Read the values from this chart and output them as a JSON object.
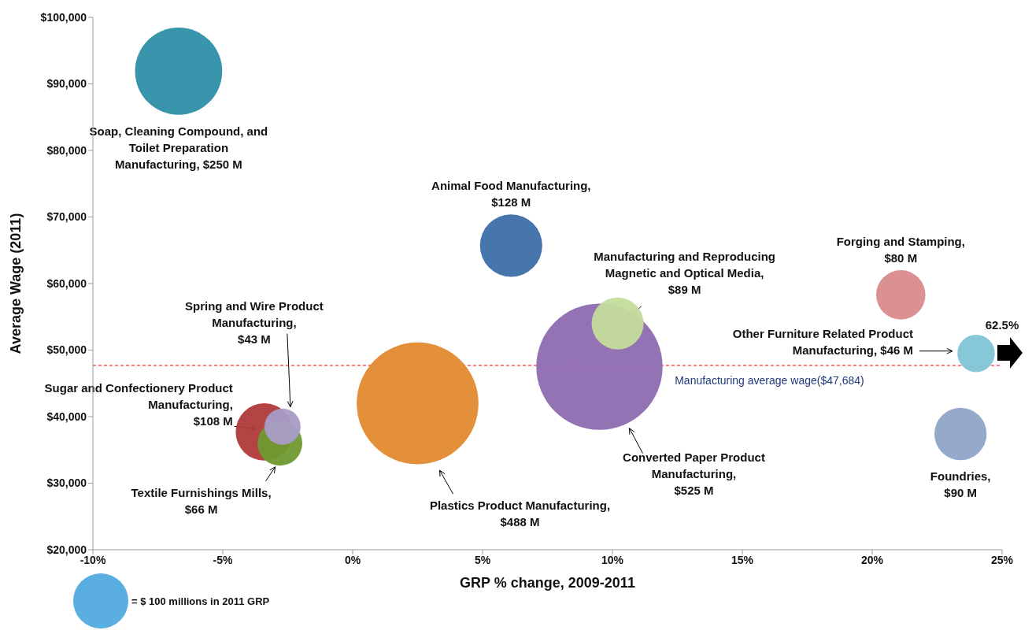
{
  "chart_data": {
    "type": "bubble",
    "xlabel": "GRP % change, 2009-2011",
    "ylabel": "Average Wage (2011)",
    "xlim": [
      -10,
      25
    ],
    "xticks": [
      {
        "value": -10,
        "label": "-10%"
      },
      {
        "value": -5,
        "label": "-5%"
      },
      {
        "value": 0,
        "label": "0%"
      },
      {
        "value": 5,
        "label": "5%"
      },
      {
        "value": 10,
        "label": "10%"
      },
      {
        "value": 15,
        "label": "15%"
      },
      {
        "value": 20,
        "label": "20%"
      },
      {
        "value": 25,
        "label": "25%"
      }
    ],
    "ylim": [
      20000,
      100000
    ],
    "yticks": [
      {
        "value": 20000,
        "label": "$20,000"
      },
      {
        "value": 30000,
        "label": "$30,000"
      },
      {
        "value": 40000,
        "label": "$40,000"
      },
      {
        "value": 50000,
        "label": "$50,000"
      },
      {
        "value": 60000,
        "label": "$60,000"
      },
      {
        "value": 70000,
        "label": "$70,000"
      },
      {
        "value": 80000,
        "label": "$80,000"
      },
      {
        "value": 90000,
        "label": "$90,000"
      },
      {
        "value": 100000,
        "label": "$100,000"
      }
    ],
    "size_legend": [
      {
        "value": 100,
        "label": "= $ 100 millions in 2011 GRP"
      }
    ],
    "series": [
      {
        "name": "Soap, Cleaning Compound, and Toilet Preparation Manufacturing, $250 M",
        "color": "#2e8fa6",
        "x": [
          -6.7
        ],
        "values": [
          91900
        ],
        "sizes": [
          250
        ]
      },
      {
        "name": "Animal Food Manufacturing, $128 M",
        "color": "#3d6fa8",
        "x": [
          6.1
        ],
        "values": [
          65700
        ],
        "sizes": [
          128
        ]
      },
      {
        "name": "Manufacturing and Reproducing Magnetic and Optical Media, $89 M",
        "color": "#c4dc9c",
        "x": [
          10.2
        ],
        "values": [
          54000
        ],
        "sizes": [
          89
        ]
      },
      {
        "name": "Forging and Stamping, $80 M",
        "color": "#d98b8b",
        "x": [
          21.1
        ],
        "values": [
          58300
        ],
        "sizes": [
          80
        ]
      },
      {
        "name": "Other Furniture Related Product Manufacturing, $46 M",
        "color": "#7fc4d6",
        "x": [
          24
        ],
        "values": [
          49500
        ],
        "sizes": [
          46
        ]
      },
      {
        "name": "Foundries, $90 M",
        "color": "#8fa4c8",
        "x": [
          23.4
        ],
        "values": [
          37400
        ],
        "sizes": [
          90
        ]
      },
      {
        "name": "Converted Paper Product Manufacturing, $525 M",
        "color": "#8e6bb0",
        "x": [
          9.5
        ],
        "values": [
          47500
        ],
        "sizes": [
          525
        ]
      },
      {
        "name": "Plastics Product Manufacturing, $488 M",
        "color": "#e38a30",
        "x": [
          2.5
        ],
        "values": [
          42000
        ],
        "sizes": [
          488
        ]
      },
      {
        "name": "Sugar and Confectionery Product Manufacturing, $108 M",
        "color": "#b03a3a",
        "x": [
          -3.4
        ],
        "values": [
          37700
        ],
        "sizes": [
          108
        ]
      },
      {
        "name": "Textile Furnishings Mills, $66 M",
        "color": "#6f9a30",
        "x": [
          -2.8
        ],
        "values": [
          36000
        ],
        "sizes": [
          66
        ]
      },
      {
        "name": "Spring and Wire Product Manufacturing, $43 M",
        "color": "#a89cc8",
        "x": [
          -2.7
        ],
        "values": [
          38500
        ],
        "sizes": [
          43
        ]
      }
    ],
    "ref_lines": [
      {
        "axis": "y",
        "value": 47684,
        "label": "Manufacturing average wage($47,684)",
        "color": "#ff0000",
        "line_style": "dashed"
      }
    ],
    "annotations": [
      "62.5%"
    ]
  }
}
